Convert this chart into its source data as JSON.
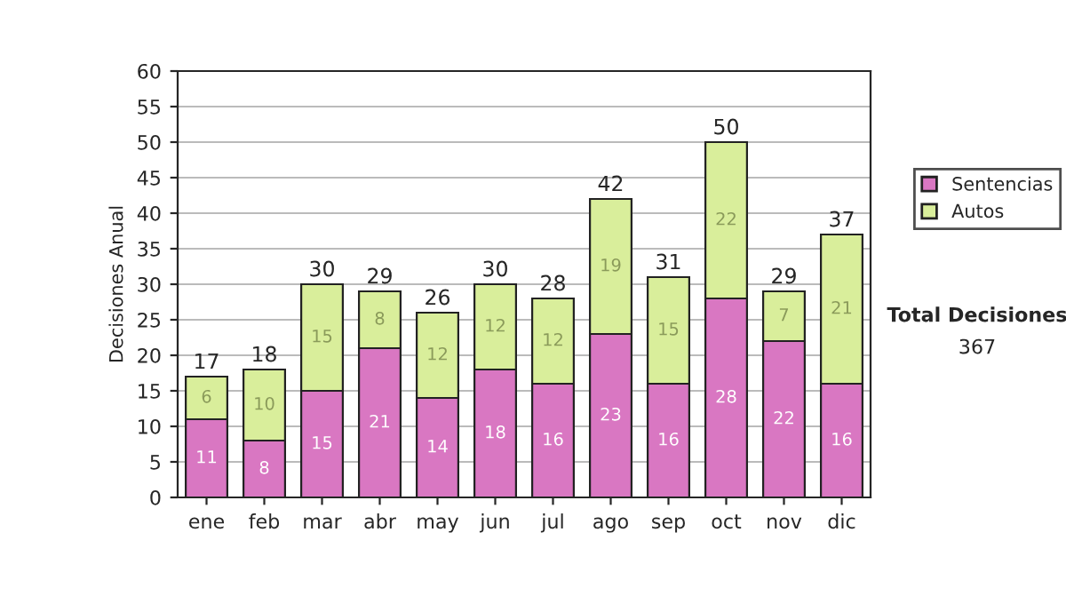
{
  "chart_data": {
    "type": "bar",
    "stacked": true,
    "ylabel": "Decisiones Anual",
    "categories": [
      "ene",
      "feb",
      "mar",
      "abr",
      "may",
      "jun",
      "jul",
      "ago",
      "sep",
      "oct",
      "nov",
      "dic"
    ],
    "series": [
      {
        "name": "Sentencias",
        "color": "#d977c2",
        "values": [
          11,
          8,
          15,
          21,
          14,
          18,
          16,
          23,
          16,
          28,
          22,
          16
        ]
      },
      {
        "name": "Autos",
        "color": "#d9ee9b",
        "values": [
          6,
          10,
          15,
          8,
          12,
          12,
          12,
          19,
          15,
          22,
          7,
          21
        ]
      }
    ],
    "totals": [
      "17",
      "18",
      "30",
      "29",
      "26",
      "30",
      "28",
      "42",
      "31",
      "50",
      "29",
      "37"
    ],
    "data_labels": true,
    "ylim": [
      0,
      60
    ],
    "yticks": [
      0,
      5,
      10,
      15,
      20,
      25,
      30,
      35,
      40,
      45,
      50,
      55,
      60
    ],
    "grid": "y",
    "legend": "right",
    "annotations": [
      "Total Decisiones",
      "367"
    ]
  }
}
